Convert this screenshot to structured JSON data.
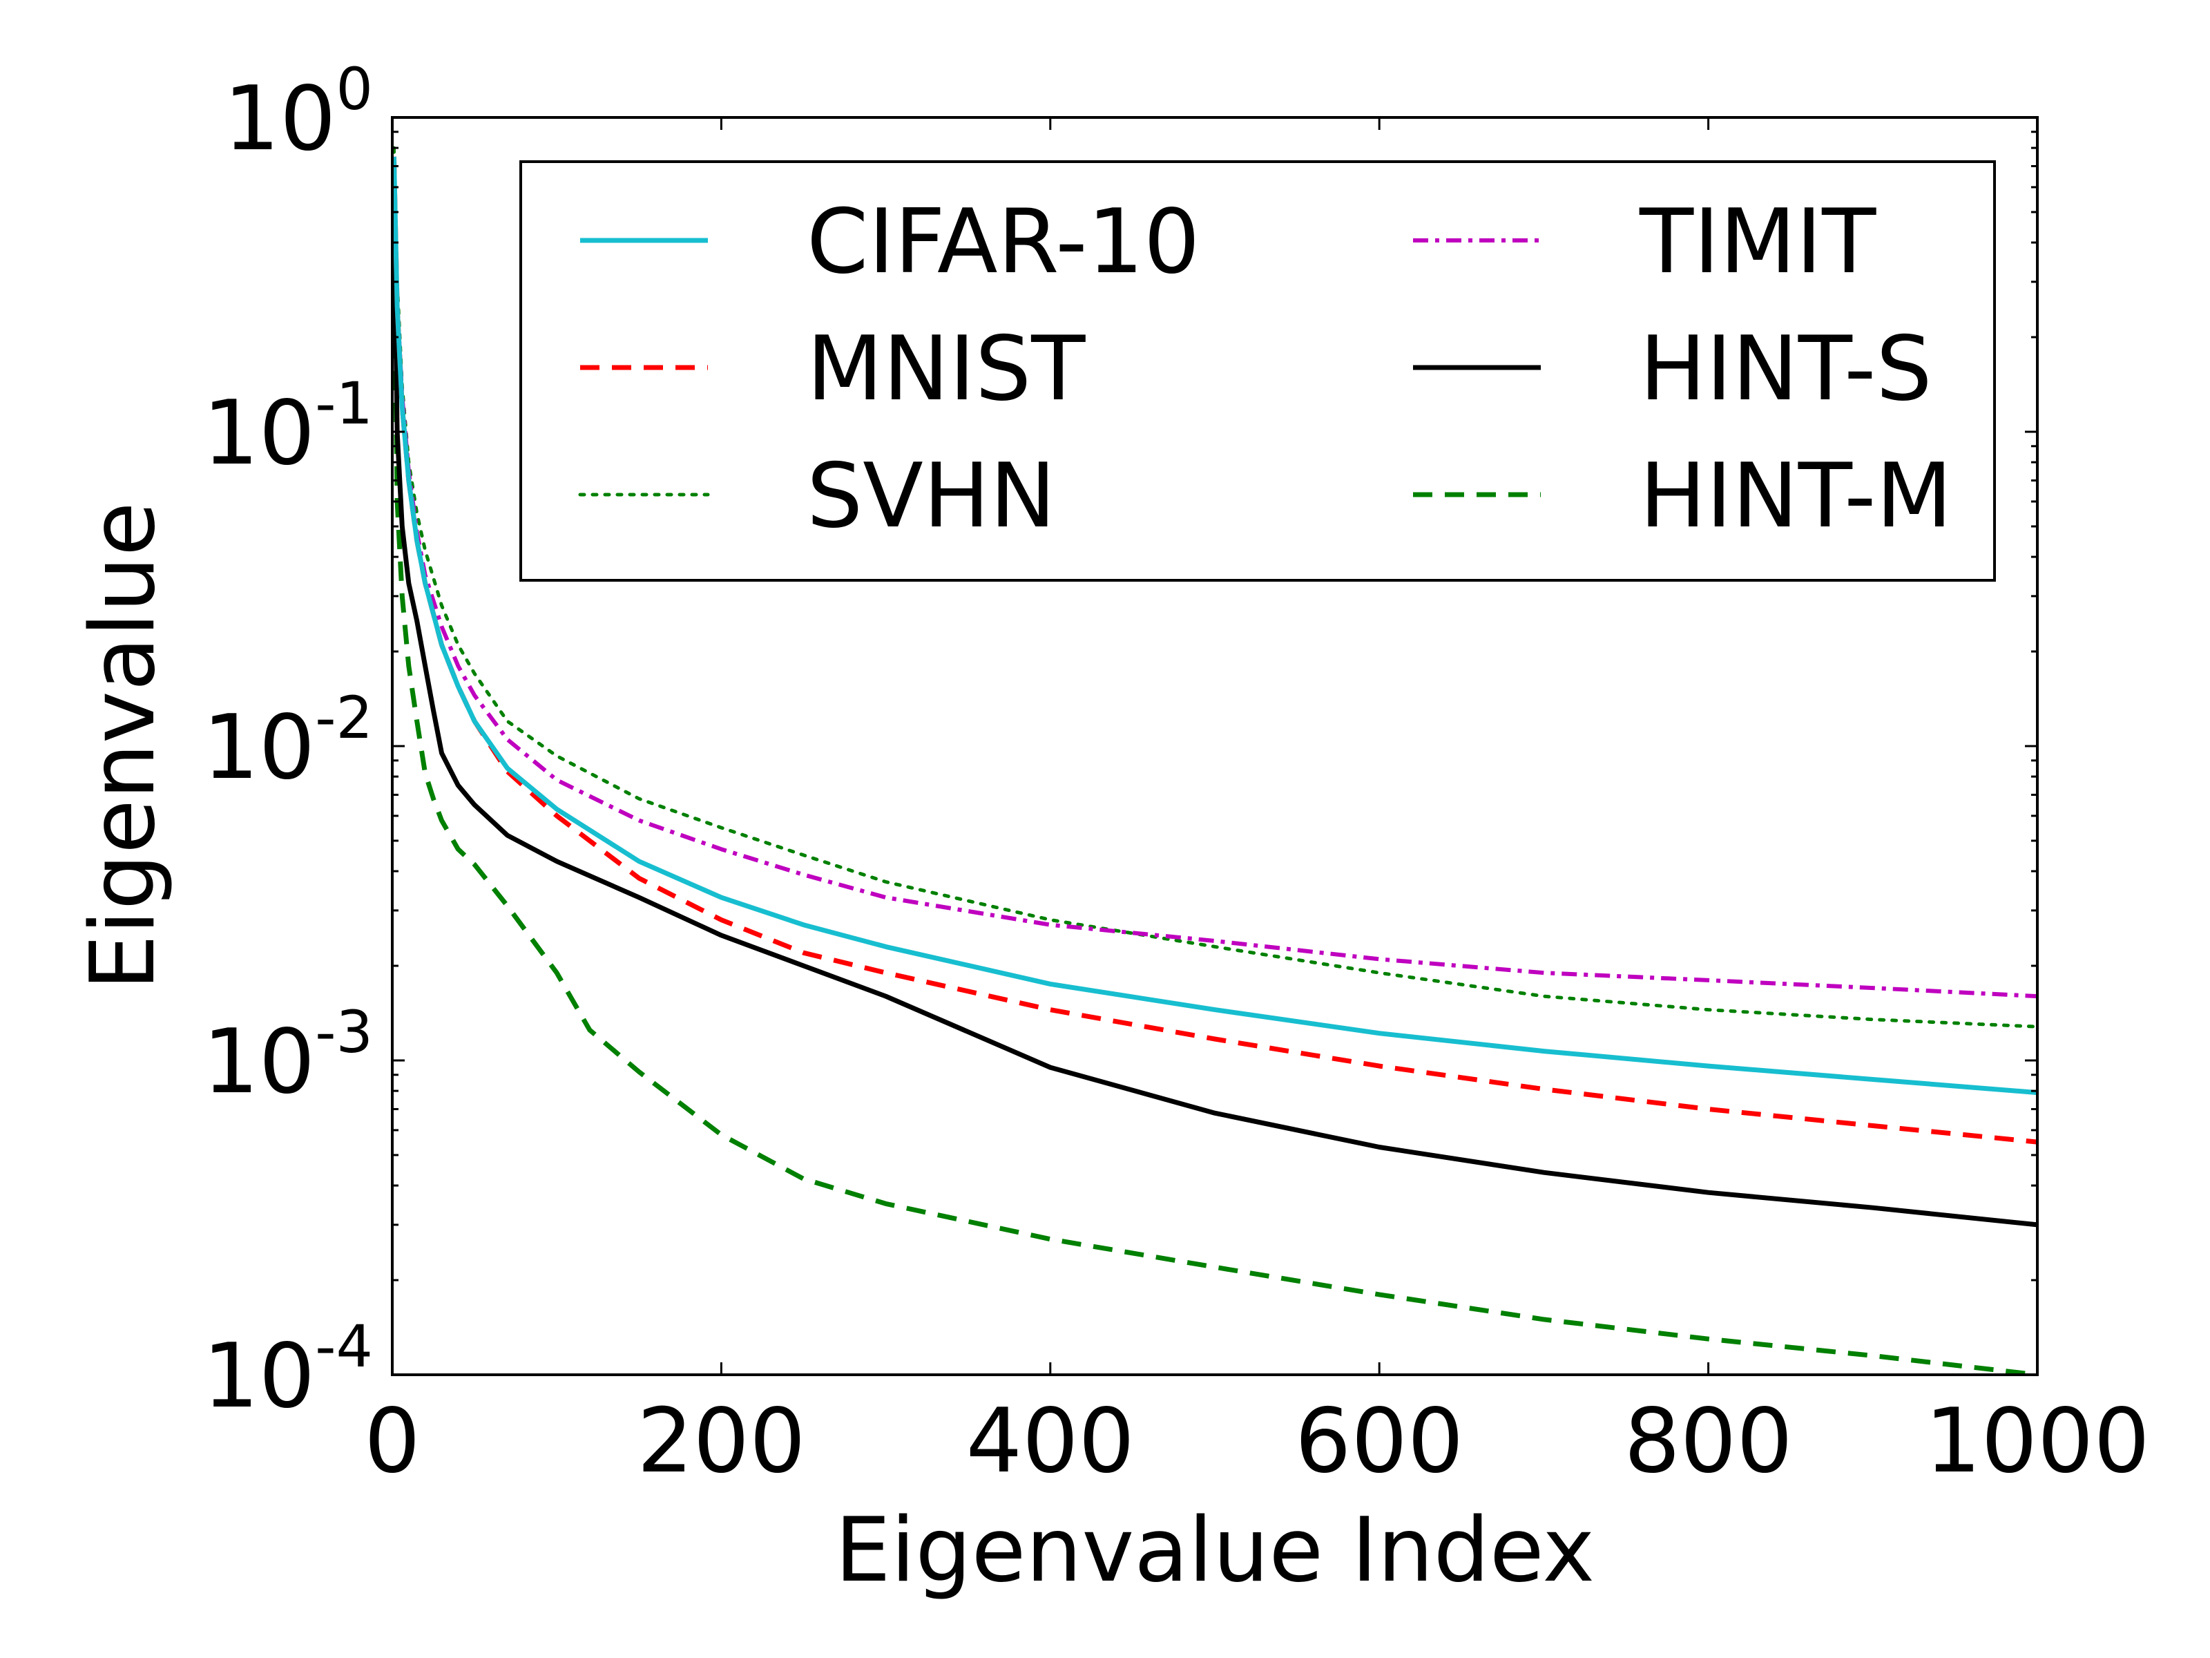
{
  "chart_data": {
    "type": "line",
    "title": "",
    "xlabel": "Eigenvalue Index",
    "ylabel": "Eigenvalue",
    "xscale": "linear",
    "yscale": "log",
    "xlim": [
      0,
      1000
    ],
    "ylim": [
      0.0001,
      1
    ],
    "grid": false,
    "legend": {
      "position": "top-right",
      "columns": 2
    },
    "x_ticks": [
      {
        "value": 0,
        "label": "0"
      },
      {
        "value": 200,
        "label": "200"
      },
      {
        "value": 400,
        "label": "400"
      },
      {
        "value": 600,
        "label": "600"
      },
      {
        "value": 800,
        "label": "800"
      },
      {
        "value": 1000,
        "label": "1000"
      }
    ],
    "y_ticks": [
      {
        "value": 1,
        "base": "10",
        "exponent": "0"
      },
      {
        "value": 0.1,
        "base": "10",
        "exponent": "-1"
      },
      {
        "value": 0.01,
        "base": "10",
        "exponent": "-2"
      },
      {
        "value": 0.001,
        "base": "10",
        "exponent": "-3"
      },
      {
        "value": 0.0001,
        "base": "10",
        "exponent": "-4"
      }
    ],
    "series": [
      {
        "name": "CIFAR-10",
        "color": "#17becf",
        "style": "solid",
        "x": [
          1,
          3,
          6,
          10,
          15,
          20,
          30,
          40,
          50,
          70,
          100,
          150,
          200,
          250,
          300,
          400,
          500,
          600,
          700,
          800,
          900,
          1000
        ],
        "y": [
          0.75,
          0.25,
          0.12,
          0.07,
          0.045,
          0.033,
          0.021,
          0.0155,
          0.012,
          0.0085,
          0.0063,
          0.0043,
          0.0033,
          0.0027,
          0.0023,
          0.00175,
          0.00145,
          0.00122,
          0.00107,
          0.00096,
          0.00087,
          0.00079
        ]
      },
      {
        "name": "MNIST",
        "color": "#ff0000",
        "style": "dashed",
        "x": [
          1,
          3,
          6,
          10,
          15,
          20,
          30,
          40,
          50,
          70,
          100,
          150,
          200,
          250,
          300,
          400,
          500,
          600,
          700,
          800,
          900,
          1000
        ],
        "y": [
          0.75,
          0.25,
          0.12,
          0.07,
          0.045,
          0.033,
          0.021,
          0.0155,
          0.012,
          0.0083,
          0.006,
          0.0038,
          0.0028,
          0.0022,
          0.0019,
          0.00145,
          0.00117,
          0.00096,
          0.00081,
          0.0007,
          0.00062,
          0.00055
        ]
      },
      {
        "name": "SVHN",
        "color": "#008000",
        "style": "dotted",
        "x": [
          1,
          3,
          6,
          10,
          15,
          20,
          30,
          40,
          50,
          70,
          100,
          150,
          200,
          250,
          300,
          400,
          500,
          600,
          700,
          800,
          900,
          1000
        ],
        "y": [
          0.8,
          0.3,
          0.14,
          0.08,
          0.055,
          0.042,
          0.028,
          0.021,
          0.017,
          0.012,
          0.0093,
          0.0068,
          0.0055,
          0.0045,
          0.0037,
          0.0028,
          0.0023,
          0.0019,
          0.0016,
          0.00145,
          0.00135,
          0.00128
        ]
      },
      {
        "name": "TIMIT",
        "color": "#bf00bf",
        "style": "dashdot",
        "x": [
          1,
          3,
          6,
          10,
          15,
          20,
          30,
          40,
          50,
          70,
          100,
          150,
          200,
          250,
          300,
          400,
          500,
          600,
          700,
          800,
          900,
          1000
        ],
        "y": [
          0.7,
          0.26,
          0.13,
          0.075,
          0.048,
          0.035,
          0.024,
          0.018,
          0.0145,
          0.0105,
          0.0078,
          0.0058,
          0.0047,
          0.0039,
          0.0033,
          0.0027,
          0.0024,
          0.0021,
          0.0019,
          0.0018,
          0.0017,
          0.0016
        ]
      },
      {
        "name": "HINT-S",
        "color": "#000000",
        "style": "solid",
        "x": [
          1,
          3,
          6,
          10,
          15,
          20,
          25,
          30,
          40,
          50,
          70,
          100,
          150,
          200,
          250,
          300,
          400,
          500,
          600,
          700,
          800,
          900,
          1000
        ],
        "y": [
          0.6,
          0.1,
          0.05,
          0.033,
          0.025,
          0.018,
          0.013,
          0.0095,
          0.0075,
          0.0065,
          0.0052,
          0.0043,
          0.0033,
          0.0025,
          0.002,
          0.0016,
          0.00095,
          0.00068,
          0.00053,
          0.00044,
          0.00038,
          0.00034,
          0.0003
        ]
      },
      {
        "name": "HINT-M",
        "color": "#008000",
        "style": "dashed",
        "x": [
          1,
          3,
          6,
          10,
          15,
          20,
          25,
          30,
          40,
          50,
          70,
          100,
          120,
          150,
          200,
          250,
          300,
          400,
          500,
          600,
          700,
          800,
          900,
          1000
        ],
        "y": [
          0.5,
          0.06,
          0.03,
          0.018,
          0.012,
          0.0082,
          0.0068,
          0.0058,
          0.0047,
          0.0042,
          0.0031,
          0.0019,
          0.00125,
          0.00092,
          0.00058,
          0.00042,
          0.00035,
          0.00027,
          0.00022,
          0.00018,
          0.00015,
          0.00013,
          0.000115,
          0.0001
        ]
      }
    ]
  }
}
